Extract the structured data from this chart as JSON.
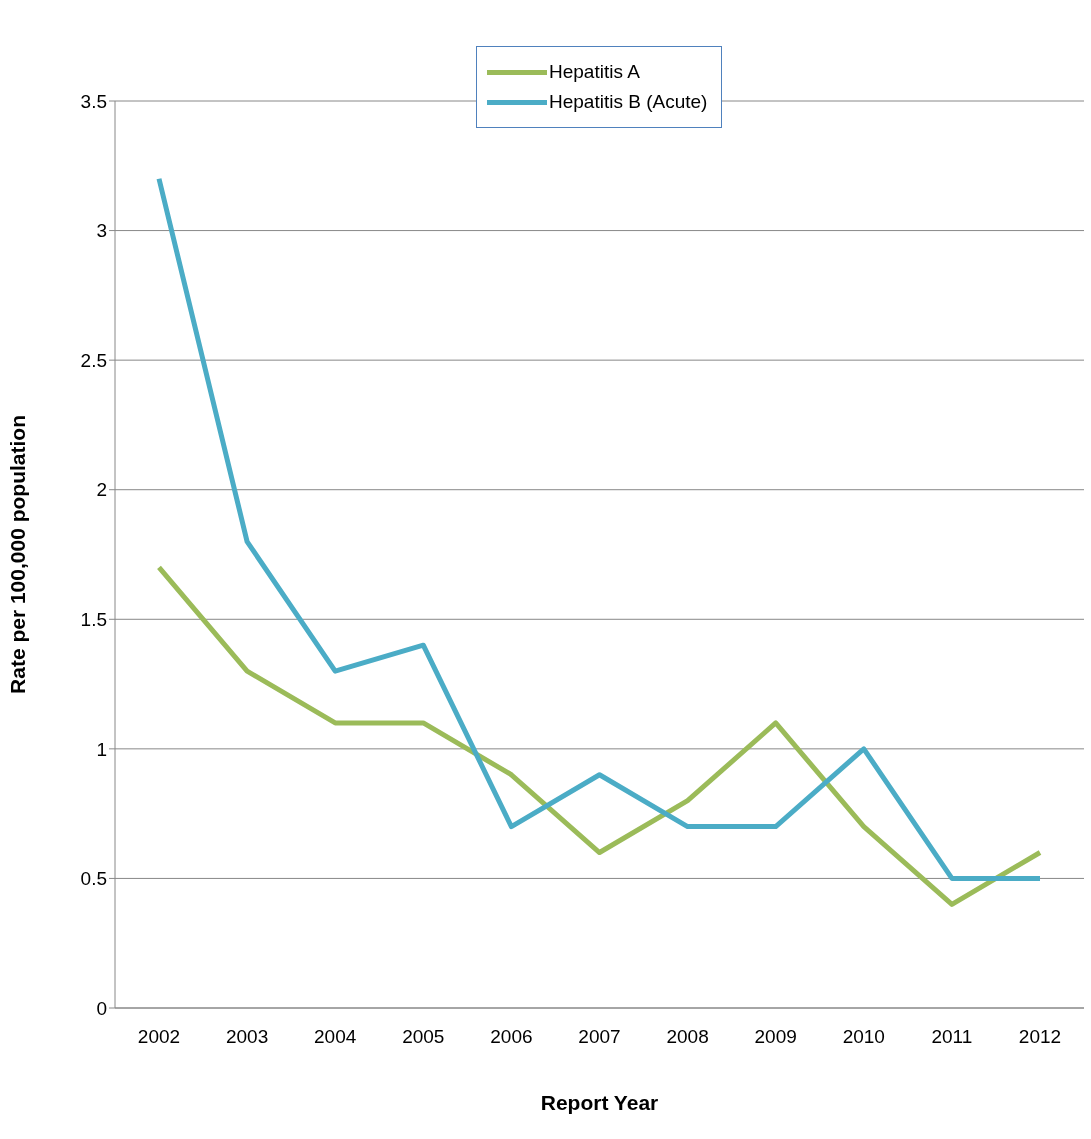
{
  "chart_data": {
    "type": "line",
    "xlabel": "Report Year",
    "ylabel": "Rate per 100,000 population",
    "categories": [
      "2002",
      "2003",
      "2004",
      "2005",
      "2006",
      "2007",
      "2008",
      "2009",
      "2010",
      "2011",
      "2012"
    ],
    "series": [
      {
        "name": "Hepatitis A",
        "color": "#9bbb59",
        "values": [
          1.7,
          1.3,
          1.1,
          1.1,
          0.9,
          0.6,
          0.8,
          1.1,
          0.7,
          0.4,
          0.6
        ]
      },
      {
        "name": "Hepatitis B (Acute)",
        "color": "#4bacc6",
        "values": [
          3.2,
          1.8,
          1.3,
          1.4,
          0.7,
          0.9,
          0.7,
          0.7,
          1.0,
          0.5,
          0.5
        ]
      }
    ],
    "ylim": [
      0,
      3.5
    ],
    "yticks": [
      0,
      0.5,
      1,
      1.5,
      2,
      2.5,
      3,
      3.5
    ],
    "grid": "y",
    "legend": "top",
    "marker": "none",
    "line_style": "solid"
  }
}
